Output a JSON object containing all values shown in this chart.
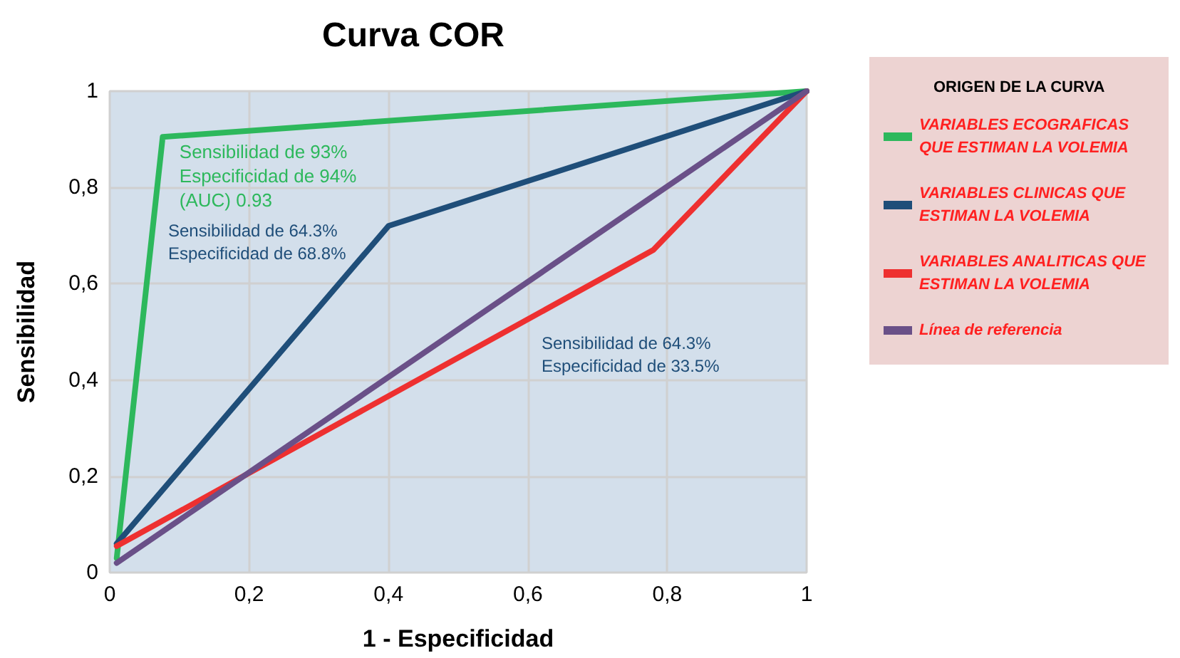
{
  "chart_data": {
    "type": "line",
    "title": "Curva COR",
    "xlabel": "1 - Especificidad",
    "ylabel": "Sensibilidad",
    "legend_title": "ORIGEN DE LA CURVA",
    "legend": "right",
    "grid": true,
    "marker": "none",
    "line_style": "solid",
    "xlim": [
      0,
      1
    ],
    "ylim": [
      0,
      1
    ],
    "xticks": [
      0,
      {
        "value": 0.2,
        "label": "0,2"
      },
      {
        "value": 0.4,
        "label": "0,4"
      },
      {
        "value": 0.6,
        "label": "0,6"
      },
      {
        "value": 0.8,
        "label": "0,8"
      },
      1
    ],
    "yticks": [
      0,
      {
        "value": 0.2,
        "label": "0,2"
      },
      {
        "value": 0.4,
        "label": "0,4"
      },
      {
        "value": 0.6,
        "label": "0,6"
      },
      {
        "value": 0.8,
        "label": "0,8"
      },
      1
    ],
    "series": [
      {
        "name": "VARIABLES ECOGRAFICAS QUE ESTIMAN LA VOLEMIA",
        "color": "#2db85c",
        "x": [
          0.01,
          0.076,
          1
        ],
        "values": [
          0.03,
          0.905,
          1
        ]
      },
      {
        "name": "VARIABLES CLINICAS QUE ESTIMAN LA VOLEMIA",
        "color": "#1f4e79",
        "x": [
          0.01,
          0.4,
          1
        ],
        "values": [
          0.06,
          0.72,
          1
        ]
      },
      {
        "name": "VARIABLES ANALITICAS QUE ESTIMAN LA VOLEMIA",
        "color": "#ee3030",
        "x": [
          0.01,
          0.78,
          1
        ],
        "values": [
          0.055,
          0.67,
          1
        ]
      },
      {
        "name": "Línea de referencia",
        "color": "#6a5088",
        "x": [
          0.01,
          1
        ],
        "values": [
          0.02,
          1
        ]
      }
    ],
    "annotations": [
      {
        "text": "Sensibilidad de 93%\nEspecificidad de 94%\n(AUC) 0.93",
        "x": 0.1,
        "y": 0.9
      },
      "Sensibilidad de 64.3%\nEspecificidad de 68.8%",
      "Sensibilidad de 64.3%\nEspecificidad de 33.5%"
    ]
  }
}
